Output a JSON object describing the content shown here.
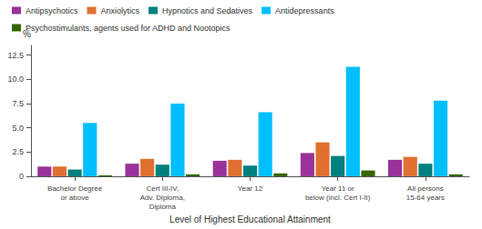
{
  "chart_data": {
    "type": "bar",
    "categories": [
      "Bachelor Degree\nor above",
      "Cert III-IV,\nAdv. Diploma,\nDiploma",
      "Year 12",
      "Year 11 or\nbelow (incl. Cert I-II)",
      "All persons\n15-64 years"
    ],
    "series": [
      {
        "name": "Antipsychotics",
        "color": "#993399",
        "values": [
          1.0,
          1.3,
          1.6,
          2.4,
          1.7
        ]
      },
      {
        "name": "Anxiolytics",
        "color": "#E07030",
        "values": [
          1.0,
          1.8,
          1.7,
          3.5,
          2.0
        ]
      },
      {
        "name": "Hypnotics and Sedatives",
        "color": "#008080",
        "values": [
          0.7,
          1.2,
          1.1,
          2.1,
          1.3
        ]
      },
      {
        "name": "Antidepressants",
        "color": "#00BFFF",
        "values": [
          5.5,
          7.5,
          6.6,
          11.3,
          7.8
        ]
      },
      {
        "name": "Psychostimulants, agents used for ADHD and Nootopics",
        "color": "#336600",
        "values": [
          0.1,
          0.2,
          0.3,
          0.6,
          0.2
        ]
      }
    ],
    "xlabel": "Level of Highest Educational Attainment",
    "ylabel": "%",
    "ylim": [
      0,
      13.5
    ],
    "yticks": [
      0,
      2.5,
      {
        "value": 5.0,
        "label": "5.0"
      },
      {
        "value": 7.5,
        "label": "7.5"
      },
      {
        "value": 10.0,
        "label": "10.0"
      },
      12.5
    ],
    "grid": false,
    "legend": "upper left"
  }
}
